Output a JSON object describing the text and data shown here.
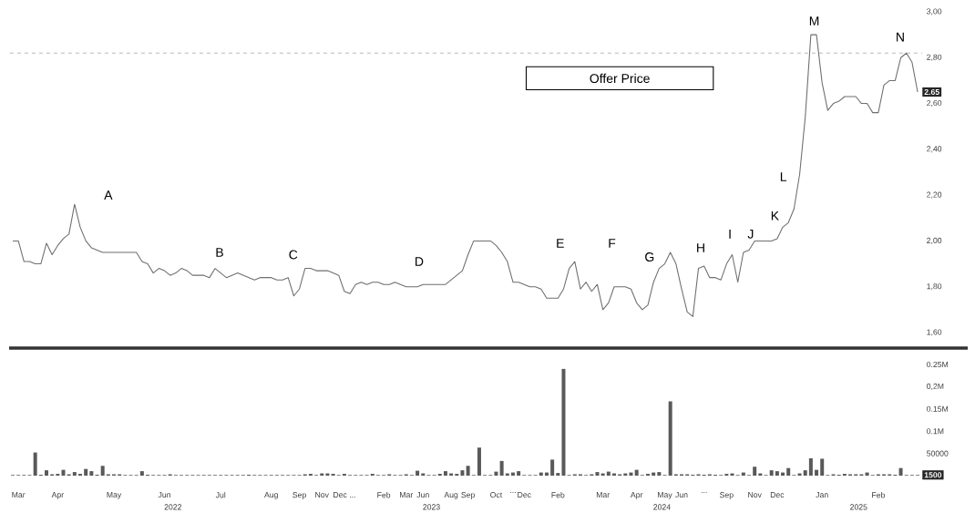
{
  "chart_data": [
    {
      "type": "line",
      "tick_labels": "y",
      "color": "#6e6e6e",
      "ylim": [
        1.6,
        3.0
      ],
      "yticks": [
        {
          "value": 1.6,
          "label": "1,60"
        },
        {
          "value": 1.8,
          "label": "1,80"
        },
        {
          "value": 2.0,
          "label": "2,00"
        },
        {
          "value": 2.2,
          "label": "2,20"
        },
        {
          "value": 2.4,
          "label": "2,40"
        },
        {
          "value": 2.6,
          "label": "2,60"
        },
        {
          "value": 2.8,
          "label": "2,80"
        },
        {
          "value": 3.0,
          "label": "3,00"
        }
      ],
      "ref_lines": [
        {
          "axis": "y",
          "value": 2.82,
          "label": "Offer Price",
          "color": "#a6a6a6",
          "line_style": "dashed"
        }
      ],
      "annotations": [
        "A",
        "B",
        "C",
        "D",
        "E",
        "F",
        "G",
        "H",
        "I",
        "J",
        "K",
        "L",
        "M",
        "N",
        {
          "text": "2.65",
          "y": 2.65
        }
      ],
      "categories": [
        null,
        null,
        null,
        null,
        null,
        null,
        null,
        null,
        null,
        null,
        null,
        null,
        null,
        null,
        null,
        null,
        null,
        null,
        null,
        null,
        null,
        null,
        null,
        null,
        null,
        null,
        null,
        null,
        null,
        null,
        null,
        null,
        null,
        null,
        null,
        null,
        null,
        null,
        null,
        null,
        null,
        null,
        null,
        null,
        null,
        null,
        null,
        null,
        null,
        null,
        null,
        null,
        null,
        null,
        null,
        null,
        null,
        null,
        null,
        null,
        null,
        null,
        null,
        null,
        null,
        null,
        null,
        null,
        null,
        null,
        null,
        null,
        null,
        null,
        null,
        null,
        null,
        null,
        null,
        null,
        null,
        null,
        null,
        null,
        null,
        null,
        null,
        null,
        null,
        null,
        null,
        null,
        null,
        null,
        null,
        null,
        null,
        null,
        null,
        null,
        null,
        null,
        null,
        null,
        null,
        null,
        null,
        null,
        null,
        null,
        null,
        null,
        null,
        null,
        null,
        null,
        null,
        null,
        null,
        null,
        null,
        null,
        null,
        null,
        null,
        null,
        null,
        null,
        null,
        null,
        null,
        null,
        null,
        null,
        null,
        null,
        null,
        null,
        null,
        null,
        null,
        null,
        null,
        null,
        null,
        null,
        null,
        null,
        null,
        null,
        null,
        null,
        null,
        null,
        null,
        null,
        null,
        null,
        null,
        null,
        null,
        null
      ],
      "values": [
        2.0,
        2.0,
        1.91,
        1.91,
        1.9,
        1.9,
        1.99,
        1.94,
        1.98,
        2.01,
        2.03,
        2.16,
        2.06,
        2.0,
        1.97,
        1.96,
        1.95,
        1.95,
        1.95,
        1.95,
        1.95,
        1.95,
        1.95,
        1.91,
        1.9,
        1.86,
        1.88,
        1.87,
        1.85,
        1.86,
        1.88,
        1.87,
        1.85,
        1.85,
        1.85,
        1.84,
        1.88,
        1.86,
        1.84,
        1.85,
        1.86,
        1.85,
        1.84,
        1.83,
        1.84,
        1.84,
        1.84,
        1.83,
        1.83,
        1.84,
        1.76,
        1.79,
        1.88,
        1.88,
        1.87,
        1.87,
        1.87,
        1.86,
        1.85,
        1.78,
        1.77,
        1.81,
        1.82,
        1.81,
        1.82,
        1.82,
        1.81,
        1.81,
        1.82,
        1.81,
        1.8,
        1.8,
        1.8,
        1.81,
        1.81,
        1.81,
        1.81,
        1.81,
        1.83,
        1.85,
        1.87,
        1.94,
        2.0,
        2.0,
        2.0,
        2.0,
        1.98,
        1.95,
        1.91,
        1.82,
        1.82,
        1.81,
        1.8,
        1.8,
        1.79,
        1.75,
        1.75,
        1.75,
        1.79,
        1.88,
        1.91,
        1.79,
        1.82,
        1.78,
        1.81,
        1.7,
        1.73,
        1.8,
        1.8,
        1.8,
        1.79,
        1.73,
        1.7,
        1.72,
        1.82,
        1.88,
        1.9,
        1.95,
        1.9,
        1.79,
        1.69,
        1.67,
        1.88,
        1.89,
        1.84,
        1.84,
        1.83,
        1.9,
        1.94,
        1.82,
        1.95,
        1.96,
        2.0,
        2.0,
        2.0,
        2.0,
        2.01,
        2.06,
        2.08,
        2.14,
        2.29,
        2.54,
        2.9,
        2.9,
        2.69,
        2.57,
        2.6,
        2.61,
        2.63,
        2.63,
        2.63,
        2.6,
        2.6,
        2.56,
        2.56,
        2.68,
        2.7,
        2.7,
        2.8,
        2.82,
        2.78,
        2.65
      ]
    },
    {
      "type": "bar",
      "color": "#595959",
      "ylim": [
        0,
        250000
      ],
      "yticks": [
        50000,
        {
          "value": 100000,
          "label": "0.1M"
        },
        {
          "value": 150000,
          "label": "0.15M"
        },
        {
          "value": 200000,
          "label": "0,2M"
        },
        {
          "value": 250000,
          "label": "0.25M"
        }
      ],
      "annotations": [
        "2022",
        "2023",
        "2024",
        "2025",
        {
          "text": "1500",
          "y": 1500
        }
      ],
      "categories": [
        null,
        "Mar",
        null,
        null,
        null,
        null,
        null,
        null,
        "Apr",
        null,
        null,
        null,
        null,
        null,
        null,
        null,
        null,
        null,
        "May",
        null,
        null,
        null,
        null,
        null,
        null,
        null,
        null,
        "Jun",
        null,
        null,
        null,
        null,
        null,
        null,
        null,
        null,
        null,
        "Jul",
        null,
        null,
        null,
        null,
        null,
        null,
        null,
        null,
        "Aug",
        null,
        null,
        null,
        null,
        "Sep",
        null,
        null,
        null,
        "Nov",
        null,
        null,
        null,
        "Dec ...",
        null,
        null,
        null,
        null,
        null,
        null,
        "Feb",
        null,
        null,
        null,
        "Mar",
        null,
        null,
        "Jun",
        null,
        null,
        null,
        null,
        "Aug",
        null,
        null,
        "Sep",
        null,
        null,
        null,
        null,
        "Oct",
        null,
        null,
        "...",
        null,
        "Dec",
        null,
        null,
        null,
        null,
        null,
        "Feb",
        null,
        null,
        null,
        null,
        null,
        null,
        null,
        "Mar",
        null,
        null,
        null,
        null,
        null,
        "Apr",
        null,
        null,
        null,
        null,
        "May",
        null,
        null,
        "Jun",
        null,
        null,
        null,
        "...",
        null,
        null,
        null,
        "Sep",
        null,
        null,
        null,
        null,
        "Nov",
        null,
        null,
        null,
        "Dec",
        null,
        null,
        null,
        null,
        null,
        null,
        null,
        "Jan",
        null,
        null,
        null,
        null,
        null,
        null,
        null,
        null,
        null,
        "Feb",
        null,
        null,
        null,
        null,
        null,
        null,
        null
      ],
      "values": [
        1500,
        1500,
        1500,
        1500,
        52000,
        2000,
        12000,
        3000,
        4000,
        13000,
        3000,
        8000,
        4000,
        15000,
        10000,
        2000,
        22000,
        3000,
        3000,
        3000,
        1500,
        1500,
        1500,
        10000,
        2000,
        1500,
        1500,
        1500,
        3000,
        1500,
        1500,
        1500,
        1500,
        1500,
        1500,
        1500,
        1500,
        1500,
        1500,
        1500,
        1500,
        1500,
        2000,
        1500,
        1500,
        1500,
        1500,
        1500,
        1500,
        1500,
        1500,
        1500,
        3000,
        4000,
        1500,
        5000,
        5000,
        4000,
        1500,
        4000,
        1500,
        1500,
        1500,
        1500,
        4000,
        1500,
        1500,
        3000,
        1500,
        1500,
        3000,
        1500,
        11000,
        5000,
        1500,
        1500,
        4000,
        10000,
        5000,
        4000,
        12000,
        22000,
        1500,
        63000,
        1500,
        1500,
        9000,
        33000,
        5000,
        7000,
        10000,
        1500,
        1500,
        1500,
        7000,
        7000,
        36000,
        6000,
        240000,
        1500,
        3000,
        3000,
        1500,
        3000,
        8000,
        5000,
        9000,
        5000,
        3000,
        5000,
        7000,
        13000,
        1500,
        4000,
        7000,
        8000,
        1500,
        167000,
        3000,
        3000,
        3000,
        2000,
        3000,
        2000,
        3000,
        2000,
        1500,
        4000,
        5000,
        1500,
        7000,
        1500,
        20000,
        5000,
        1500,
        12000,
        10000,
        7000,
        17000,
        1500,
        5000,
        12000,
        39000,
        13000,
        38000,
        1500,
        3000,
        2000,
        4000,
        3000,
        3000,
        3000,
        7000,
        1500,
        3000,
        3000,
        3000,
        2000,
        17000,
        1500,
        1500,
        1500
      ]
    }
  ]
}
